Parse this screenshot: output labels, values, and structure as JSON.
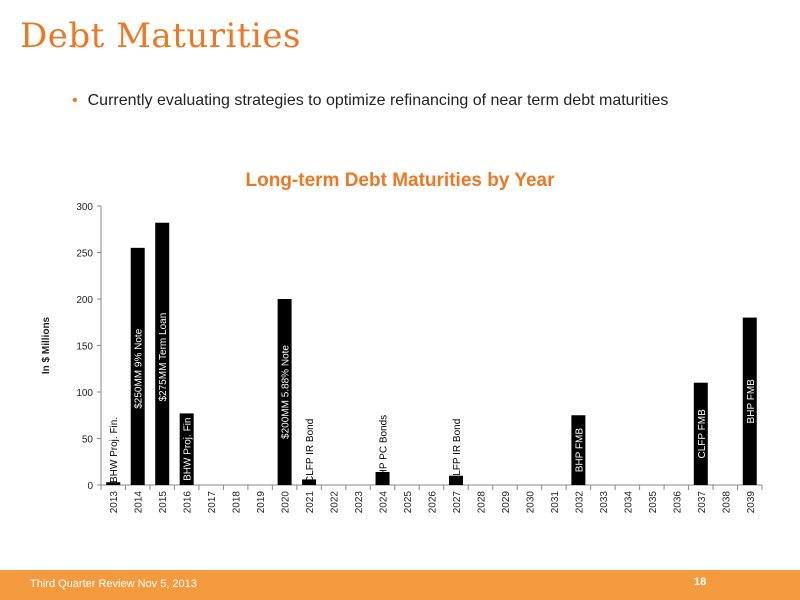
{
  "slide": {
    "title": "Debt Maturities",
    "bullet": "Currently evaluating strategies to optimize refinancing of near term debt maturities"
  },
  "footer": {
    "text": "Third Quarter Review  Nov 5, 2013",
    "page": "18"
  },
  "colors": {
    "accent": "#ee7722",
    "footer": "#f39a3f",
    "bar": "#000000"
  },
  "chart_data": {
    "type": "bar",
    "title": "Long-term Debt Maturities by Year",
    "ylabel": "In $ Millions",
    "xlabel": "",
    "ylim": [
      0,
      300
    ],
    "yticks": [
      0,
      50,
      100,
      150,
      200,
      250,
      300
    ],
    "grid": false,
    "categories": [
      "2013",
      "2014",
      "2015",
      "2016",
      "2017",
      "2018",
      "2019",
      "2020",
      "2021",
      "2022",
      "2023",
      "2024",
      "2025",
      "2026",
      "2027",
      "2028",
      "2029",
      "2030",
      "2031",
      "2032",
      "2033",
      "2034",
      "2035",
      "2036",
      "2037",
      "2038",
      "2039"
    ],
    "values": [
      3,
      255,
      282,
      77,
      0,
      0,
      0,
      200,
      6,
      0,
      0,
      14,
      0,
      0,
      10,
      0,
      0,
      0,
      0,
      75,
      0,
      0,
      0,
      0,
      110,
      0,
      180
    ],
    "annotations": [
      {
        "category": "2013",
        "text": "BHW Proj. Fin.",
        "value": 3
      },
      {
        "category": "2014",
        "text": "$250MM 9% Note",
        "value": 250
      },
      {
        "category": "2014",
        "text": "BHW Proj. Fin.",
        "value": 5
      },
      {
        "category": "2015",
        "text": "$275MM Term Loan",
        "value": 275
      },
      {
        "category": "2015",
        "text": "BHW Proj. Fin.",
        "value": 7
      },
      {
        "category": "2016",
        "text": "BHW Proj. Fin",
        "value": 77
      },
      {
        "category": "2020",
        "text": "$200MM 5.88% Note",
        "value": 200
      },
      {
        "category": "2021",
        "text": "CLFP IR Bond",
        "value": 6
      },
      {
        "category": "2024",
        "text": "BHP PC Bonds",
        "value": 14
      },
      {
        "category": "2027",
        "text": "CLFP IR Bond",
        "value": 10
      },
      {
        "category": "2032",
        "text": "BHP FMB",
        "value": 75
      },
      {
        "category": "2037",
        "text": "CLFP FMB",
        "value": 110
      },
      {
        "category": "2039",
        "text": "BHP FMB",
        "value": 180
      }
    ]
  }
}
